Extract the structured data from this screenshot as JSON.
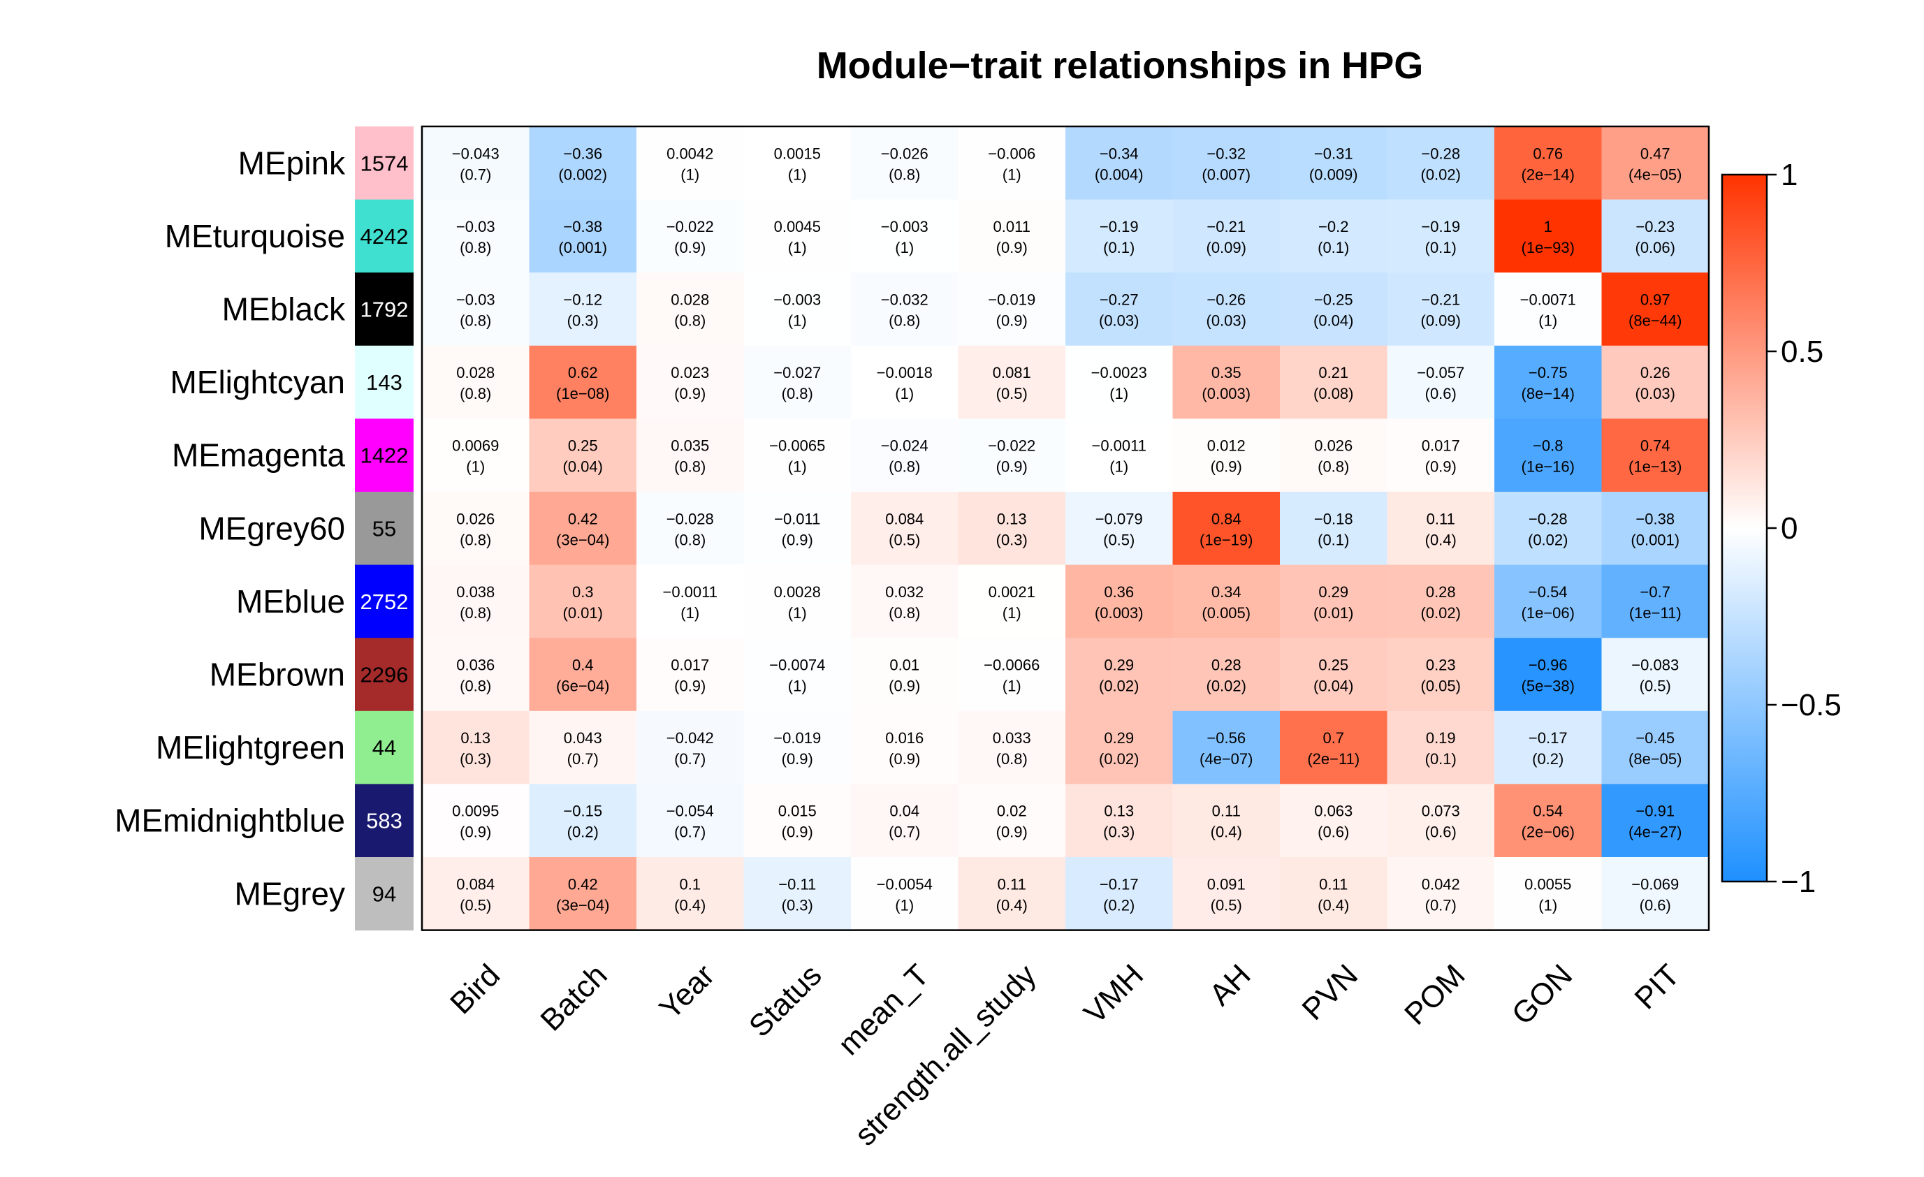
{
  "chart_data": {
    "type": "heatmap",
    "title": "Module−trait relationships in HPG",
    "columns": [
      "Bird",
      "Batch",
      "Year",
      "Status",
      "mean_T",
      "strength.all_study",
      "VMH",
      "AH",
      "PVN",
      "POM",
      "GON",
      "PIT"
    ],
    "modules": [
      {
        "name": "MEpink",
        "color": "#FFC0CB",
        "count": "1574",
        "count_color": "#000000"
      },
      {
        "name": "MEturquoise",
        "color": "#40E0D0",
        "count": "4242",
        "count_color": "#000000"
      },
      {
        "name": "MEblack",
        "color": "#000000",
        "count": "1792",
        "count_color": "#FFFFFF"
      },
      {
        "name": "MElightcyan",
        "color": "#E0FFFF",
        "count": "143",
        "count_color": "#000000"
      },
      {
        "name": "MEmagenta",
        "color": "#FF00FF",
        "count": "1422",
        "count_color": "#000000"
      },
      {
        "name": "MEgrey60",
        "color": "#999999",
        "count": "55",
        "count_color": "#000000"
      },
      {
        "name": "MEblue",
        "color": "#0000FF",
        "count": "2752",
        "count_color": "#FFFFFF"
      },
      {
        "name": "MEbrown",
        "color": "#A52A2A",
        "count": "2296",
        "count_color": "#000000"
      },
      {
        "name": "MElightgreen",
        "color": "#90EE90",
        "count": "44",
        "count_color": "#000000"
      },
      {
        "name": "MEmidnightblue",
        "color": "#191970",
        "count": "583",
        "count_color": "#FFFFFF"
      },
      {
        "name": "MEgrey",
        "color": "#BEBEBE",
        "count": "94",
        "count_color": "#000000"
      }
    ],
    "correlations": [
      [
        "−0.043",
        "−0.36",
        "0.0042",
        "0.0015",
        "−0.026",
        "−0.006",
        "−0.34",
        "−0.32",
        "−0.31",
        "−0.28",
        "0.76",
        "0.47"
      ],
      [
        "−0.03",
        "−0.38",
        "−0.022",
        "0.0045",
        "−0.003",
        "0.011",
        "−0.19",
        "−0.21",
        "−0.2",
        "−0.19",
        "1",
        "−0.23"
      ],
      [
        "−0.03",
        "−0.12",
        "0.028",
        "−0.003",
        "−0.032",
        "−0.019",
        "−0.27",
        "−0.26",
        "−0.25",
        "−0.21",
        "−0.0071",
        "0.97"
      ],
      [
        "0.028",
        "0.62",
        "0.023",
        "−0.027",
        "−0.0018",
        "0.081",
        "−0.0023",
        "0.35",
        "0.21",
        "−0.057",
        "−0.75",
        "0.26"
      ],
      [
        "0.0069",
        "0.25",
        "0.035",
        "−0.0065",
        "−0.024",
        "−0.022",
        "−0.0011",
        "0.012",
        "0.026",
        "0.017",
        "−0.8",
        "0.74"
      ],
      [
        "0.026",
        "0.42",
        "−0.028",
        "−0.011",
        "0.084",
        "0.13",
        "−0.079",
        "0.84",
        "−0.18",
        "0.11",
        "−0.28",
        "−0.38"
      ],
      [
        "0.038",
        "0.3",
        "−0.0011",
        "0.0028",
        "0.032",
        "0.0021",
        "0.36",
        "0.34",
        "0.29",
        "0.28",
        "−0.54",
        "−0.7"
      ],
      [
        "0.036",
        "0.4",
        "0.017",
        "−0.0074",
        "0.01",
        "−0.0066",
        "0.29",
        "0.28",
        "0.25",
        "0.23",
        "−0.96",
        "−0.083"
      ],
      [
        "0.13",
        "0.043",
        "−0.042",
        "−0.019",
        "0.016",
        "0.033",
        "0.29",
        "−0.56",
        "0.7",
        "0.19",
        "−0.17",
        "−0.45"
      ],
      [
        "0.0095",
        "−0.15",
        "−0.054",
        "0.015",
        "0.04",
        "0.02",
        "0.13",
        "0.11",
        "0.063",
        "0.073",
        "0.54",
        "−0.91"
      ],
      [
        "0.084",
        "0.42",
        "0.1",
        "−0.11",
        "−0.0054",
        "0.11",
        "−0.17",
        "0.091",
        "0.11",
        "0.042",
        "0.0055",
        "−0.069"
      ]
    ],
    "pvalues": [
      [
        "(0.7)",
        "(0.002)",
        "(1)",
        "(1)",
        "(0.8)",
        "(1)",
        "(0.004)",
        "(0.007)",
        "(0.009)",
        "(0.02)",
        "(2e−14)",
        "(4e−05)"
      ],
      [
        "(0.8)",
        "(0.001)",
        "(0.9)",
        "(1)",
        "(1)",
        "(0.9)",
        "(0.1)",
        "(0.09)",
        "(0.1)",
        "(0.1)",
        "(1e−93)",
        "(0.06)"
      ],
      [
        "(0.8)",
        "(0.3)",
        "(0.8)",
        "(1)",
        "(0.8)",
        "(0.9)",
        "(0.03)",
        "(0.03)",
        "(0.04)",
        "(0.09)",
        "(1)",
        "(8e−44)"
      ],
      [
        "(0.8)",
        "(1e−08)",
        "(0.9)",
        "(0.8)",
        "(1)",
        "(0.5)",
        "(1)",
        "(0.003)",
        "(0.08)",
        "(0.6)",
        "(8e−14)",
        "(0.03)"
      ],
      [
        "(1)",
        "(0.04)",
        "(0.8)",
        "(1)",
        "(0.8)",
        "(0.9)",
        "(1)",
        "(0.9)",
        "(0.8)",
        "(0.9)",
        "(1e−16)",
        "(1e−13)"
      ],
      [
        "(0.8)",
        "(3e−04)",
        "(0.8)",
        "(0.9)",
        "(0.5)",
        "(0.3)",
        "(0.5)",
        "(1e−19)",
        "(0.1)",
        "(0.4)",
        "(0.02)",
        "(0.001)"
      ],
      [
        "(0.8)",
        "(0.01)",
        "(1)",
        "(1)",
        "(0.8)",
        "(1)",
        "(0.003)",
        "(0.005)",
        "(0.01)",
        "(0.02)",
        "(1e−06)",
        "(1e−11)"
      ],
      [
        "(0.8)",
        "(6e−04)",
        "(0.9)",
        "(1)",
        "(0.9)",
        "(1)",
        "(0.02)",
        "(0.02)",
        "(0.04)",
        "(0.05)",
        "(5e−38)",
        "(0.5)"
      ],
      [
        "(0.3)",
        "(0.7)",
        "(0.7)",
        "(0.9)",
        "(0.9)",
        "(0.8)",
        "(0.02)",
        "(4e−07)",
        "(2e−11)",
        "(0.1)",
        "(0.2)",
        "(8e−05)"
      ],
      [
        "(0.9)",
        "(0.2)",
        "(0.7)",
        "(0.9)",
        "(0.7)",
        "(0.9)",
        "(0.3)",
        "(0.4)",
        "(0.6)",
        "(0.6)",
        "(2e−06)",
        "(4e−27)"
      ],
      [
        "(0.5)",
        "(3e−04)",
        "(0.4)",
        "(0.3)",
        "(1)",
        "(0.4)",
        "(0.2)",
        "(0.5)",
        "(0.4)",
        "(0.7)",
        "(1)",
        "(0.6)"
      ]
    ],
    "color_scale": {
      "min": -1,
      "max": 1,
      "low_color": "#1E90FF",
      "mid_color": "#FFFFFF",
      "high_color": "#FF3300",
      "tick_labels": [
        "1",
        "0.5",
        "0",
        "−0.5",
        "−1"
      ],
      "tick_values": [
        1,
        0.5,
        0,
        -0.5,
        -1
      ]
    }
  }
}
